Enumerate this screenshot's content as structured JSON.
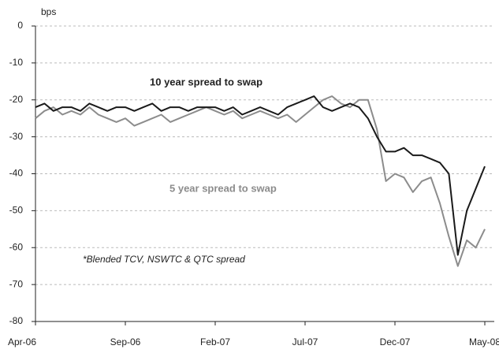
{
  "chart_data": {
    "type": "line",
    "y_label": "bps",
    "annotations": [
      "10 year spread to swap",
      "5 year spread to swap",
      "*Blended TCV, NSWTC & QTC spread"
    ],
    "categories": [
      "Apr-06",
      null,
      null,
      null,
      null,
      null,
      null,
      null,
      null,
      null,
      "Sep-06",
      null,
      null,
      null,
      null,
      null,
      null,
      null,
      null,
      null,
      "Feb-07",
      null,
      null,
      null,
      null,
      null,
      null,
      null,
      null,
      null,
      "Jul-07",
      null,
      null,
      null,
      null,
      null,
      null,
      null,
      null,
      null,
      "Dec-07",
      null,
      null,
      null,
      null,
      null,
      null,
      null,
      null,
      null,
      "May-08"
    ],
    "series": [
      {
        "name": "10 year spread to swap",
        "color": "#1a1a1a",
        "values": [
          -22,
          -21,
          -23,
          -22,
          -22,
          -23,
          -21,
          -22,
          -23,
          -22,
          -22,
          -23,
          -22,
          -21,
          -23,
          -22,
          -22,
          -23,
          -22,
          -22,
          -22,
          -23,
          -22,
          -24,
          -23,
          -22,
          -23,
          -24,
          -22,
          -21,
          -20,
          -19,
          -22,
          -23,
          -22,
          -21,
          -22,
          -25,
          -30,
          -34,
          -34,
          -33,
          -35,
          -35,
          -36,
          -37,
          -40,
          -62,
          -50,
          -44,
          -38
        ]
      },
      {
        "name": "5 year spread to swap",
        "color": "#8c8c8c",
        "values": [
          -25,
          -23,
          -22,
          -24,
          -23,
          -24,
          -22,
          -24,
          -25,
          -26,
          -25,
          -27,
          -26,
          -25,
          -24,
          -26,
          -25,
          -24,
          -23,
          -22,
          -23,
          -24,
          -23,
          -25,
          -24,
          -23,
          -24,
          -25,
          -24,
          -26,
          -24,
          -22,
          -20,
          -19,
          -21,
          -22,
          -20,
          -20,
          -28,
          -42,
          -40,
          -41,
          -45,
          -42,
          -41,
          -48,
          -57,
          -65,
          -58,
          -60,
          -55
        ]
      }
    ],
    "ylim": [
      -80,
      0
    ],
    "yticks": [
      0,
      -10,
      -20,
      -30,
      -40,
      -50,
      -60,
      -70,
      -80
    ],
    "grid": true
  }
}
